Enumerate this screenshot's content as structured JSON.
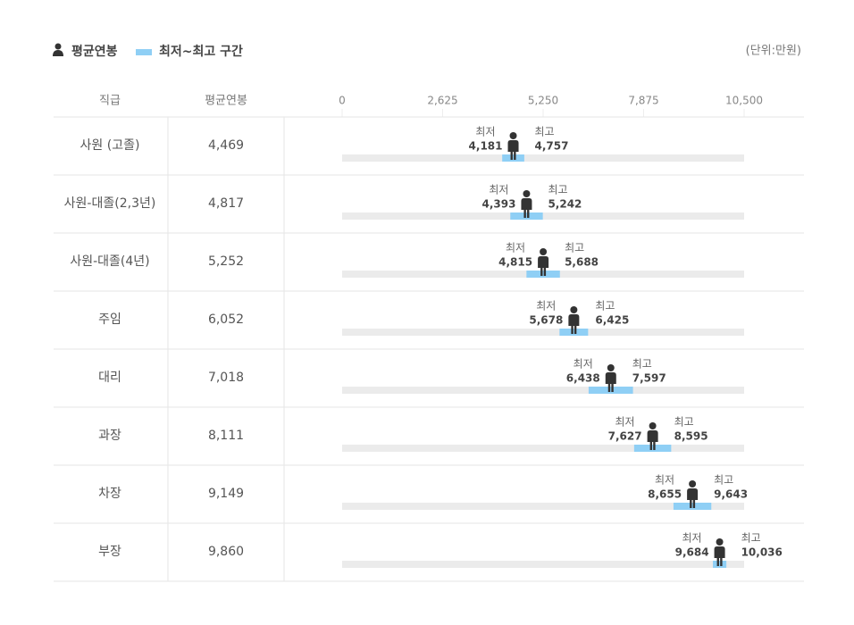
{
  "chart_data": {
    "type": "range",
    "unit_note": "(단위:만원)",
    "columns": [
      "직급",
      "평균연봉"
    ],
    "categories": [
      "사원 (고졸)",
      "사원-대졸(2,3년)",
      "사원-대졸(4년)",
      "주임",
      "대리",
      "과장",
      "차장",
      "부장"
    ],
    "series": [
      {
        "name": "평균연봉",
        "color": "#333333",
        "values": [
          4469,
          4817,
          5252,
          6052,
          7018,
          8111,
          9149,
          9860
        ],
        "value_labels": [
          "4,469",
          "4,817",
          "5,252",
          "6,052",
          "7,018",
          "8,111",
          "9,149",
          "9,860"
        ]
      }
    ],
    "range": {
      "name": "최저~최고 구간",
      "color": "#8fcff5",
      "low_title": "최저",
      "high_title": "최고",
      "low": [
        4181,
        4393,
        4815,
        5678,
        6438,
        7627,
        8655,
        9684
      ],
      "low_labels": [
        "4,181",
        "4,393",
        "4,815",
        "5,678",
        "6,438",
        "7,627",
        "8,655",
        "9,684"
      ],
      "high": [
        4757,
        5242,
        5688,
        6425,
        7597,
        8595,
        9643,
        10036
      ],
      "high_labels": [
        "4,757",
        "5,242",
        "5,688",
        "6,425",
        "7,597",
        "8,595",
        "9,643",
        "10,036"
      ]
    },
    "xlim": [
      0,
      10500
    ],
    "xticks": [
      0,
      {
        "value": 2625,
        "label": "2,625"
      },
      {
        "value": 5250,
        "label": "5,250"
      },
      {
        "value": 7875,
        "label": "7,875"
      },
      {
        "value": 10500,
        "label": "10,500"
      }
    ]
  }
}
